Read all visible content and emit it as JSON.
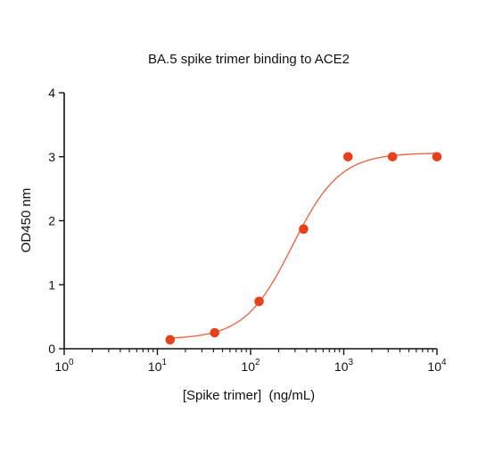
{
  "chart_data": {
    "type": "scatter",
    "title": "BA.5 spike trimer binding to ACE2",
    "xlabel": "[Spike trimer]  (ng/mL)",
    "ylabel": "OD450 nm",
    "xscale": "log",
    "xlim": [
      1,
      10000
    ],
    "ylim": [
      0,
      4
    ],
    "x_ticks": [
      {
        "base": "10",
        "exp": "0"
      },
      {
        "base": "10",
        "exp": "1"
      },
      {
        "base": "10",
        "exp": "2"
      },
      {
        "base": "10",
        "exp": "3"
      },
      {
        "base": "10",
        "exp": "4"
      }
    ],
    "y_ticks": [
      "0",
      "1",
      "2",
      "3",
      "4"
    ],
    "grid": false,
    "legend": "none",
    "colors": {
      "series": "#e8401c",
      "curve": "#e8694a",
      "axis": "#111111"
    },
    "series": [
      {
        "x": [
          13.7,
          41.2,
          123.5,
          370.4,
          1111.1,
          3333.3,
          10000
        ],
        "y": [
          0.14,
          0.25,
          0.74,
          1.87,
          3.0,
          3.0,
          3.0
        ]
      }
    ],
    "fit": {
      "model": "4PL",
      "bottom": 0.15,
      "top": 3.06,
      "ec50": 280,
      "hill": 1.7
    }
  }
}
